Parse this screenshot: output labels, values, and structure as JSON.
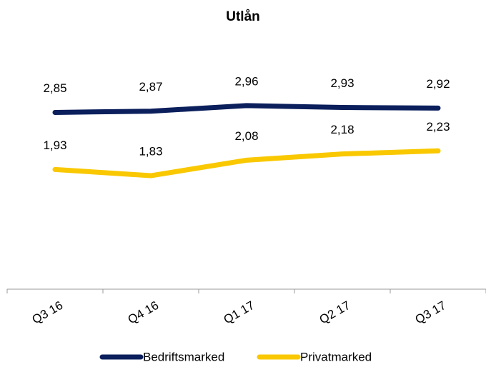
{
  "chart_data": {
    "type": "line",
    "title": "Utlån",
    "categories": [
      "Q3 16",
      "Q4 16",
      "Q1 17",
      "Q2 17",
      "Q3 17"
    ],
    "series": [
      {
        "name": "Bedriftsmarked",
        "color": "#0b1f5c",
        "values": [
          2.85,
          2.87,
          2.96,
          2.93,
          2.92
        ],
        "value_labels": [
          "2,85",
          "2,87",
          "2,96",
          "2,93",
          "2,92"
        ]
      },
      {
        "name": "Privatmarked",
        "color": "#f9c800",
        "values": [
          1.93,
          1.83,
          2.08,
          2.18,
          2.23
        ],
        "value_labels": [
          "1,93",
          "1,83",
          "2,08",
          "2,18",
          "2,23"
        ]
      }
    ],
    "ylim": [
      0,
      3.5
    ],
    "legend": "bottom"
  }
}
